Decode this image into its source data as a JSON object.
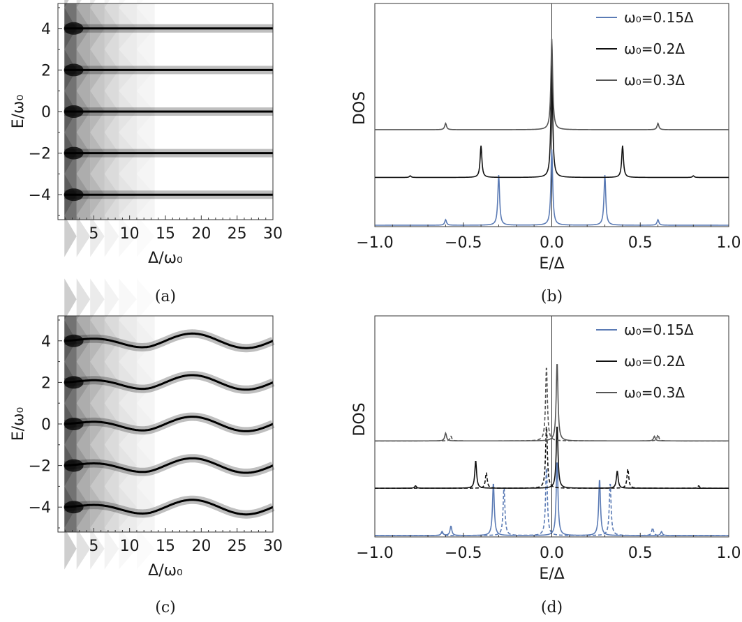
{
  "chart_data": [
    {
      "panel": "(a)",
      "type": "heatmap",
      "xlabel": "Δ/ω₀",
      "ylabel": "E/ω₀",
      "xlim": [
        0,
        30
      ],
      "ylim": [
        -5.2,
        5.2
      ],
      "xticks": [
        "5",
        "10",
        "15",
        "20",
        "25",
        "30"
      ],
      "xtick_values": [
        5,
        10,
        15,
        20,
        25,
        30
      ],
      "yticks": [
        "4",
        "2",
        "0",
        "−2",
        "−4"
      ],
      "ytick_values": [
        4,
        2,
        0,
        -2,
        -4
      ],
      "bands": [
        4,
        2,
        0,
        -2,
        -4
      ],
      "band_oscillation_amplitude": 0,
      "colormap": "white-to-black"
    },
    {
      "panel": "(b)",
      "type": "line",
      "xlabel": "E/Δ",
      "ylabel": "DOS",
      "xlim": [
        -1.0,
        1.0
      ],
      "xticks": [
        "−1.0",
        "−0.5",
        "0.0",
        "0.5",
        "1.0"
      ],
      "xtick_values": [
        -1.0,
        -0.5,
        0.0,
        0.5,
        1.0
      ],
      "legend_position": "top-right",
      "series": [
        {
          "name": "ω₀=0.15Δ",
          "color": "#5b7bb5",
          "offset": 0.0,
          "dashed": false,
          "peaks": [
            [
              0.0,
              0.95
            ],
            [
              -0.3,
              0.63
            ],
            [
              0.3,
              0.63
            ],
            [
              -0.6,
              0.07
            ],
            [
              0.6,
              0.07
            ]
          ]
        },
        {
          "name": "ω₀=0.2Δ",
          "color": "#111111",
          "offset": 0.6,
          "dashed": false,
          "peaks": [
            [
              0.0,
              1.4
            ],
            [
              -0.4,
              0.4
            ],
            [
              0.4,
              0.4
            ],
            [
              -0.8,
              0.02
            ],
            [
              0.8,
              0.02
            ]
          ]
        },
        {
          "name": "ω₀=0.3Δ",
          "color": "#555555",
          "offset": 1.2,
          "dashed": false,
          "peaks": [
            [
              0.0,
              1.14
            ],
            [
              -0.6,
              0.08
            ],
            [
              0.6,
              0.08
            ]
          ]
        }
      ]
    },
    {
      "panel": "(c)",
      "type": "heatmap",
      "xlabel": "Δ/ω₀",
      "ylabel": "E/ω₀",
      "xlim": [
        0,
        30
      ],
      "ylim": [
        -5.2,
        5.2
      ],
      "xticks": [
        "5",
        "10",
        "15",
        "20",
        "25",
        "30"
      ],
      "xtick_values": [
        5,
        10,
        15,
        20,
        25,
        30
      ],
      "yticks": [
        "4",
        "2",
        "0",
        "−2",
        "−4"
      ],
      "ytick_values": [
        4,
        2,
        0,
        -2,
        -4
      ],
      "bands": [
        4,
        2,
        0,
        -2,
        -4
      ],
      "band_oscillation_amplitude": 0.35,
      "colormap": "white-to-black"
    },
    {
      "panel": "(d)",
      "type": "line",
      "xlabel": "E/Δ",
      "ylabel": "DOS",
      "xlim": [
        -1.0,
        1.0
      ],
      "xticks": [
        "−1.0",
        "−0.5",
        "0.0",
        "0.5",
        "1.0"
      ],
      "xtick_values": [
        -1.0,
        -0.5,
        0.0,
        0.5,
        1.0
      ],
      "legend_position": "top-right",
      "series": [
        {
          "name": "ω₀=0.15Δ",
          "color": "#5b7bb5",
          "offset": 0.0,
          "dashed": false,
          "peaks": [
            [
              0.03,
              0.95
            ],
            [
              -0.33,
              0.67
            ],
            [
              0.27,
              0.72
            ],
            [
              -0.57,
              0.12
            ],
            [
              0.62,
              0.05
            ],
            [
              -0.62,
              0.05
            ]
          ]
        },
        {
          "name": "",
          "color": "#5b7bb5",
          "offset": 0.0,
          "dashed": true,
          "peaks": [
            [
              -0.03,
              0.88
            ],
            [
              0.33,
              0.67
            ],
            [
              -0.27,
              0.62
            ],
            [
              0.57,
              0.1
            ],
            [
              -0.62,
              0.04
            ]
          ]
        },
        {
          "name": "ω₀=0.2Δ",
          "color": "#111111",
          "offset": 0.6,
          "dashed": false,
          "peaks": [
            [
              0.03,
              0.8
            ],
            [
              -0.43,
              0.35
            ],
            [
              0.37,
              0.22
            ],
            [
              -0.77,
              0.03
            ]
          ]
        },
        {
          "name": "",
          "color": "#111111",
          "offset": 0.6,
          "dashed": true,
          "peaks": [
            [
              -0.03,
              0.8
            ],
            [
              0.43,
              0.25
            ],
            [
              -0.37,
              0.2
            ],
            [
              0.83,
              0.03
            ]
          ]
        },
        {
          "name": "ω₀=0.3Δ",
          "color": "#555555",
          "offset": 1.2,
          "dashed": false,
          "peaks": [
            [
              0.03,
              1.0
            ],
            [
              -0.6,
              0.1
            ],
            [
              0.58,
              0.06
            ]
          ]
        },
        {
          "name": "",
          "color": "#555555",
          "offset": 1.2,
          "dashed": true,
          "peaks": [
            [
              -0.03,
              0.95
            ],
            [
              0.6,
              0.08
            ],
            [
              -0.57,
              0.06
            ]
          ]
        }
      ]
    }
  ],
  "captions": [
    "(a)",
    "(b)",
    "(c)",
    "(d)"
  ]
}
